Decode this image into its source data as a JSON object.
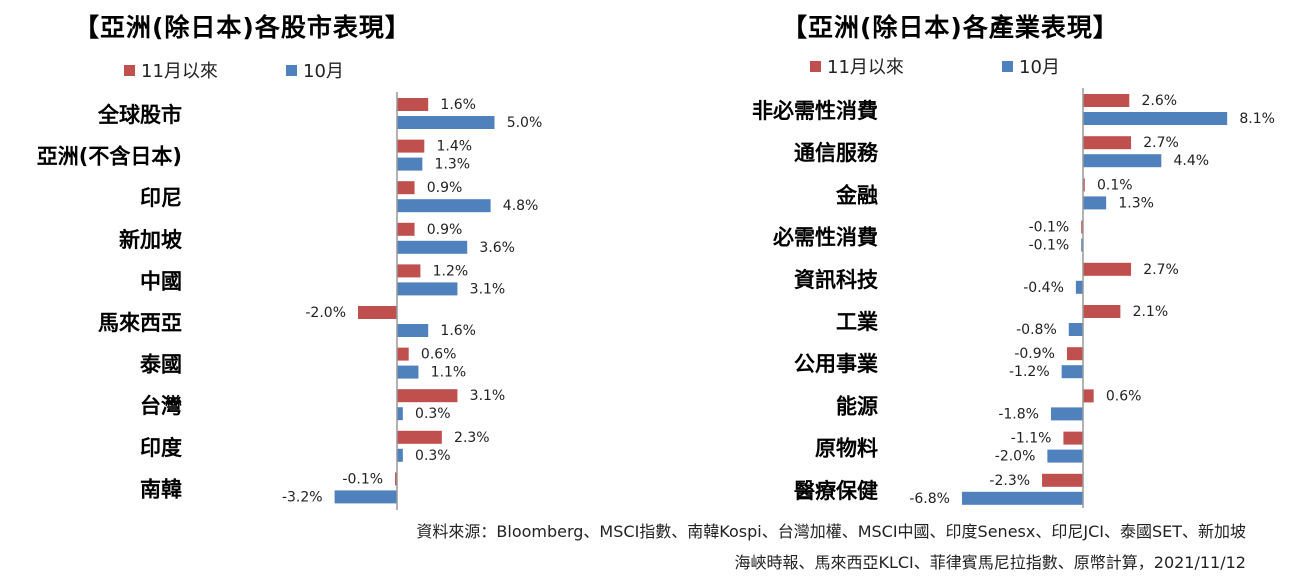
{
  "colors": {
    "nov": "#c0504d",
    "oct": "#4f81bd",
    "axis": "#999999"
  },
  "legend": {
    "nov_label": "11月以來",
    "oct_label": "10月"
  },
  "source": {
    "line1": "資料來源：Bloomberg、MSCI指數、南韓Kospi、台灣加權、MSCI中國、印度Senesx、印尼JCI、泰國SET、新加坡",
    "line2": "海峽時報、馬來西亞KLCI、菲律賓馬尼拉指數、原幣計算，2021/11/12"
  },
  "chart_data": [
    {
      "type": "bar",
      "orientation": "horizontal",
      "title": "【亞洲(除日本)各股市表現】",
      "categories": [
        "全球股市",
        "亞洲(不含日本)",
        "印尼",
        "新加坡",
        "中國",
        "馬來西亞",
        "泰國",
        "台灣",
        "印度",
        "南韓"
      ],
      "series": [
        {
          "name": "11月以來",
          "values": [
            1.6,
            1.4,
            0.9,
            0.9,
            1.2,
            -2.0,
            0.6,
            3.1,
            2.3,
            -0.1
          ]
        },
        {
          "name": "10月",
          "values": [
            5.0,
            1.3,
            4.8,
            3.6,
            3.1,
            1.6,
            1.1,
            0.3,
            0.3,
            -3.2
          ]
        }
      ],
      "value_format": "percent_1dp",
      "legend": "top",
      "grid": false
    },
    {
      "type": "bar",
      "orientation": "horizontal",
      "title": "【亞洲(除日本)各產業表現】",
      "categories": [
        "非必需性消費",
        "通信服務",
        "金融",
        "必需性消費",
        "資訊科技",
        "工業",
        "公用事業",
        "能源",
        "原物料",
        "醫療保健"
      ],
      "series": [
        {
          "name": "11月以來",
          "values": [
            2.6,
            2.7,
            0.1,
            -0.1,
            2.7,
            2.1,
            -0.9,
            0.6,
            -1.1,
            -2.3
          ]
        },
        {
          "name": "10月",
          "values": [
            8.1,
            4.4,
            1.3,
            -0.1,
            -0.4,
            -0.8,
            -1.2,
            -1.8,
            -2.0,
            -6.8
          ]
        }
      ],
      "value_format": "percent_1dp",
      "legend": "top",
      "grid": false
    }
  ]
}
